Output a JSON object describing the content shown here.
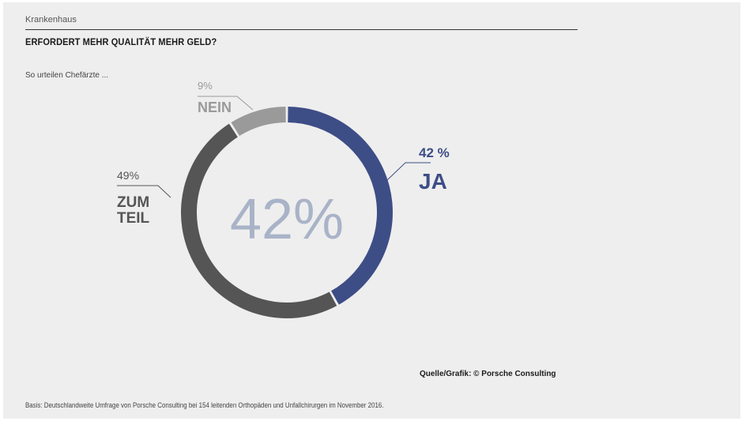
{
  "header": {
    "kicker": "Krankenhaus",
    "title": "ERFORDERT MEHR QUALITÄT MEHR GELD?",
    "subtitle": "So urteilen Chefärzte ..."
  },
  "chart_data": {
    "type": "pie",
    "donut": true,
    "center_label": "42%",
    "slices": [
      {
        "label": "JA",
        "value": 42,
        "value_label": "42 %",
        "color": "#3d4d86"
      },
      {
        "label": "ZUM\nTEIL",
        "value": 49,
        "value_label": "49%",
        "color": "#555555"
      },
      {
        "label": "NEIN",
        "value": 9,
        "value_label": "9%",
        "color": "#9a9a9a"
      }
    ],
    "center_color": "#a9b3c8"
  },
  "footer": {
    "source": "Quelle/Grafik: © Porsche Consulting",
    "basis": "Basis: Deutschlandweite Umfrage von Porsche Consulting bei 154 leitenden Orthopäden und Unfallchirurgen im November 2016."
  }
}
